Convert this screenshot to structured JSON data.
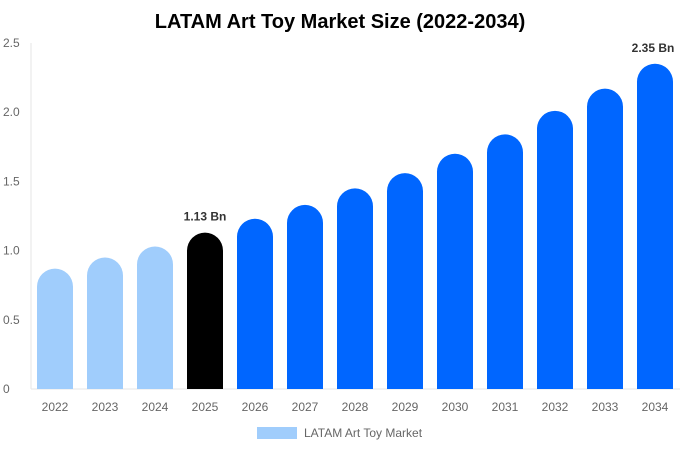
{
  "chart_data": {
    "type": "bar",
    "title": "LATAM Art Toy Market Size (2022-2034)",
    "categories": [
      "2022",
      "2023",
      "2024",
      "2025",
      "2026",
      "2027",
      "2028",
      "2029",
      "2030",
      "2031",
      "2032",
      "2033",
      "2034"
    ],
    "series": [
      {
        "name": "LATAM Art Toy Market",
        "values": [
          0.87,
          0.95,
          1.03,
          1.13,
          1.23,
          1.33,
          1.45,
          1.56,
          1.7,
          1.84,
          2.01,
          2.17,
          2.35
        ]
      }
    ],
    "data_labels": {
      "2025": "1.13 Bn",
      "2034": "2.35 Bn"
    },
    "ylim": [
      0,
      2.5
    ],
    "yticks": [
      "0",
      "0.5",
      "1.0",
      "1.5",
      "2.0",
      "2.5"
    ],
    "ytick_values": [
      0,
      0.5,
      1.0,
      1.5,
      2.0,
      2.5
    ],
    "grid": false,
    "legend_position": "bottom",
    "colors": {
      "historical": "#a0cdfc",
      "current": "#000000",
      "forecast": "#0066ff"
    },
    "xlabel": "",
    "ylabel": ""
  }
}
